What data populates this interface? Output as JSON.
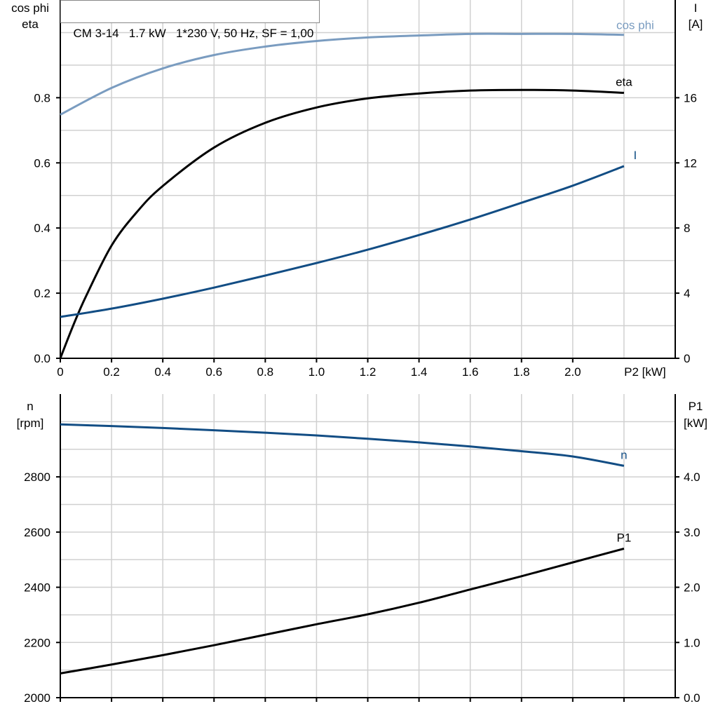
{
  "title": "CM 3-14   1.7 kW   1*230 V, 50 Hz, SF = 1,00",
  "colors": {
    "cos_phi": "#7a9cc0",
    "eta": "#000000",
    "I": "#124d84",
    "n": "#124d84",
    "P1": "#000000",
    "grid": "#d0d0d0"
  },
  "chart_data": [
    {
      "type": "line",
      "x_axis": {
        "label": "P2 [kW]",
        "range": [
          0,
          2.4
        ],
        "ticks": [
          "0",
          "0.2",
          "0.4",
          "0.6",
          "0.8",
          "1.0",
          "1.2",
          "1.4",
          "1.6",
          "1.8",
          "2.0"
        ],
        "tick_values": [
          0,
          0.2,
          0.4,
          0.6,
          0.8,
          1.0,
          1.2,
          1.4,
          1.6,
          1.8,
          2.0
        ]
      },
      "y_left": {
        "label_line1": "cos phi",
        "label_line2": "eta",
        "range": [
          0,
          1.1
        ],
        "ticks": [
          "0.0",
          "0.2",
          "0.4",
          "0.6",
          "0.8"
        ],
        "tick_values": [
          0,
          0.2,
          0.4,
          0.6,
          0.8
        ]
      },
      "y_right": {
        "label_line1": "I",
        "label_line2": "[A]",
        "range": [
          0,
          22
        ],
        "ticks": [
          "0",
          "4",
          "8",
          "12",
          "16"
        ],
        "tick_values": [
          0,
          4,
          8,
          12,
          16
        ]
      },
      "grid": true,
      "x": [
        0,
        0.2,
        0.4,
        0.6,
        0.8,
        1.0,
        1.2,
        1.4,
        1.6,
        1.8,
        2.0,
        2.2
      ],
      "series": [
        {
          "name": "cos phi",
          "axis": "left",
          "values": [
            0.748,
            0.83,
            0.89,
            0.931,
            0.957,
            0.974,
            0.985,
            0.991,
            0.996,
            0.996,
            0.996,
            0.993
          ]
        },
        {
          "name": "eta",
          "axis": "left",
          "x": [
            0,
            0.05,
            0.1,
            0.2,
            0.3,
            0.4,
            0.6,
            0.8,
            1.0,
            1.2,
            1.4,
            1.6,
            1.8,
            2.0,
            2.2
          ],
          "values": [
            0,
            0.1,
            0.19,
            0.346,
            0.45,
            0.529,
            0.647,
            0.723,
            0.77,
            0.798,
            0.813,
            0.822,
            0.824,
            0.822,
            0.815
          ]
        },
        {
          "name": "I",
          "axis": "right",
          "values": [
            2.54,
            3.05,
            3.66,
            4.34,
            5.08,
            5.85,
            6.67,
            7.57,
            8.52,
            9.55,
            10.6,
            11.8
          ]
        }
      ]
    },
    {
      "type": "line",
      "x_axis": {
        "range": [
          0,
          2.4
        ],
        "tick_values": [
          0,
          0.2,
          0.4,
          0.6,
          0.8,
          1.0,
          1.2,
          1.4,
          1.6,
          1.8,
          2.0,
          2.2
        ]
      },
      "y_left": {
        "label_line1": "n",
        "label_line2": "[rpm]",
        "range": [
          2000,
          3100
        ],
        "ticks": [
          "2000",
          "2200",
          "2400",
          "2600",
          "2800"
        ],
        "tick_values": [
          2000,
          2200,
          2400,
          2600,
          2800
        ]
      },
      "y_right": {
        "label_line1": "P1",
        "label_line2": "[kW]",
        "range": [
          0,
          5.5
        ],
        "ticks": [
          "0.0",
          "1.0",
          "2.0",
          "3.0",
          "4.0"
        ],
        "tick_values": [
          0,
          1,
          2,
          3,
          4
        ]
      },
      "grid": true,
      "x": [
        0,
        0.2,
        0.4,
        0.6,
        0.8,
        1.0,
        1.2,
        1.4,
        1.6,
        1.8,
        2.0,
        2.2
      ],
      "series": [
        {
          "name": "n",
          "axis": "left",
          "values": [
            2990,
            2984,
            2977,
            2969,
            2960,
            2950,
            2938,
            2925,
            2910,
            2893,
            2874,
            2840
          ]
        },
        {
          "name": "P1",
          "axis": "right",
          "values": [
            0.44,
            0.6,
            0.77,
            0.95,
            1.14,
            1.33,
            1.51,
            1.72,
            1.96,
            2.2,
            2.45,
            2.7
          ]
        }
      ]
    }
  ]
}
